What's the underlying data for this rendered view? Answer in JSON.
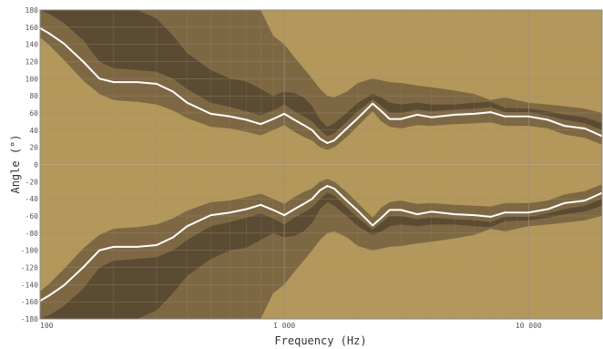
{
  "chart_data": {
    "type": "area",
    "title": "",
    "xlabel": "Frequency (Hz)",
    "ylabel": "Angle (°)",
    "xscale": "log",
    "xlim": [
      100,
      20000
    ],
    "ylim": [
      -180,
      180
    ],
    "x_ticks": [
      {
        "value": 100,
        "label": "100"
      },
      {
        "value": 1000,
        "label": "1 000"
      },
      {
        "value": 10000,
        "label": "10 000"
      }
    ],
    "y_ticks": [
      180,
      160,
      140,
      120,
      100,
      80,
      60,
      40,
      20,
      0,
      -20,
      -40,
      -60,
      -80,
      -100,
      -120,
      -140,
      -160,
      -180
    ],
    "grid": true,
    "colors": {
      "background": "#b3975b",
      "mid_band": "#7e6843",
      "inner_band": "#5b4b32",
      "line": "#ffffff",
      "grid": "#9d8f74",
      "plot_border": "#888888"
    },
    "x": [
      100,
      110,
      125,
      150,
      175,
      200,
      250,
      300,
      350,
      400,
      500,
      600,
      700,
      800,
      900,
      1000,
      1100,
      1200,
      1300,
      1400,
      1500,
      1600,
      1800,
      2000,
      2300,
      2500,
      2700,
      3000,
      3500,
      4000,
      5000,
      6000,
      7000,
      8000,
      10000,
      12000,
      14000,
      17000,
      20000
    ],
    "contour_-6dB": [
      159,
      152,
      141,
      120,
      100,
      96,
      96,
      94,
      85,
      72,
      59,
      56,
      52,
      47,
      53,
      59,
      52,
      46,
      40,
      30,
      25,
      28,
      42,
      54,
      71,
      62,
      53,
      53,
      58,
      55,
      58,
      59,
      61,
      56,
      56,
      52,
      45,
      42,
      33
    ],
    "contour_-3dB_outer": [
      180,
      180,
      180,
      180,
      180,
      180,
      180,
      180,
      180,
      180,
      180,
      180,
      180,
      180,
      150,
      140,
      125,
      112,
      100,
      88,
      80,
      78,
      85,
      95,
      100,
      98,
      96,
      95,
      92,
      90,
      86,
      82,
      75,
      78,
      72,
      70,
      68,
      65,
      60
    ],
    "contour_-3dB_inner": [
      148,
      138,
      122,
      98,
      82,
      75,
      73,
      70,
      63,
      54,
      44,
      42,
      38,
      34,
      40,
      46,
      38,
      32,
      28,
      20,
      17,
      20,
      32,
      45,
      62,
      50,
      44,
      42,
      46,
      45,
      47,
      48,
      49,
      45,
      45,
      42,
      35,
      31,
      23
    ],
    "contour_-9dB_outer": [
      180,
      180,
      180,
      180,
      180,
      180,
      180,
      170,
      150,
      130,
      110,
      100,
      97,
      88,
      80,
      85,
      83,
      78,
      68,
      52,
      44,
      48,
      60,
      72,
      82,
      78,
      72,
      70,
      72,
      70,
      70,
      72,
      73,
      66,
      65,
      62,
      58,
      55,
      48
    ],
    "contour_-9dB_inner": [
      180,
      175,
      165,
      145,
      120,
      112,
      110,
      108,
      100,
      88,
      72,
      67,
      62,
      57,
      63,
      70,
      62,
      56,
      50,
      40,
      33,
      36,
      50,
      62,
      76,
      68,
      60,
      60,
      64,
      62,
      64,
      65,
      67,
      61,
      61,
      57,
      52,
      48,
      40
    ]
  }
}
